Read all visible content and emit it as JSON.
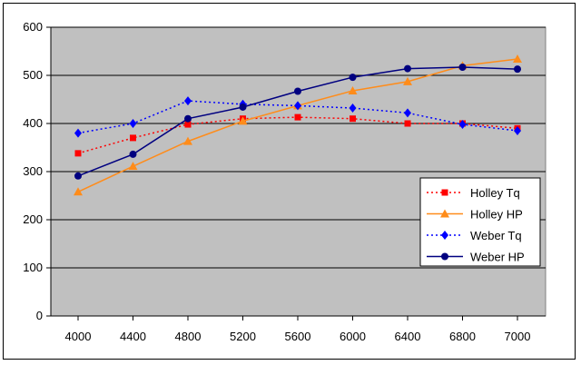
{
  "chart_data": {
    "type": "line",
    "title": "",
    "xlabel": "",
    "ylabel": "",
    "categories": [
      "4000",
      "4400",
      "4800",
      "5200",
      "5600",
      "6000",
      "6400",
      "6800",
      "7000"
    ],
    "ylim": [
      0,
      600
    ],
    "yticks": [
      "0",
      "100",
      "200",
      "300",
      "400",
      "500",
      "600"
    ],
    "grid": "horizontal",
    "legend_position": "right",
    "plot_background": "#c0c0c0",
    "series": [
      {
        "name": "Holley Tq",
        "color": "#ff0000",
        "dash": "dotted",
        "marker": "square",
        "values": [
          338,
          370,
          398,
          410,
          413,
          410,
          400,
          400,
          390
        ]
      },
      {
        "name": "Holley HP",
        "color": "#ff8c1a",
        "dash": "solid",
        "marker": "triangle",
        "values": [
          258,
          311,
          363,
          405,
          437,
          468,
          487,
          520,
          534
        ]
      },
      {
        "name": "Weber Tq",
        "color": "#0000ff",
        "dash": "dotted",
        "marker": "diamond",
        "values": [
          380,
          400,
          447,
          440,
          437,
          432,
          422,
          398,
          385
        ]
      },
      {
        "name": "Weber HP",
        "color": "#000080",
        "dash": "solid",
        "marker": "circle",
        "values": [
          291,
          336,
          410,
          434,
          467,
          496,
          514,
          517,
          513
        ]
      }
    ]
  }
}
